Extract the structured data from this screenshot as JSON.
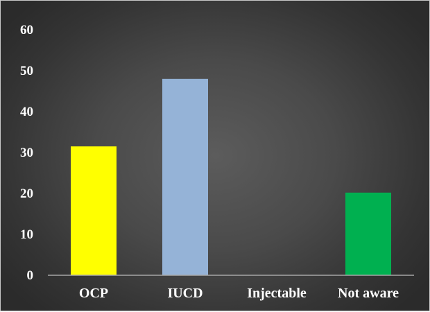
{
  "chart_data": {
    "type": "bar",
    "title": "",
    "xlabel": "",
    "ylabel": "",
    "categories": [
      "OCP",
      "IUCD",
      "Injectable",
      "Not aware"
    ],
    "values": [
      31.5,
      48,
      0,
      20.2
    ],
    "colors": [
      "#ffff00",
      "#95b3d7",
      "#a5a5a5",
      "#00b050"
    ],
    "ylim": [
      0,
      60
    ],
    "yticks": [
      "0",
      "10",
      "20",
      "30",
      "40",
      "50",
      "60"
    ],
    "grid": false,
    "legend": "none"
  },
  "colors": {
    "background": "#454545",
    "axis": "#a6a6a6",
    "text": "#ffffff"
  }
}
